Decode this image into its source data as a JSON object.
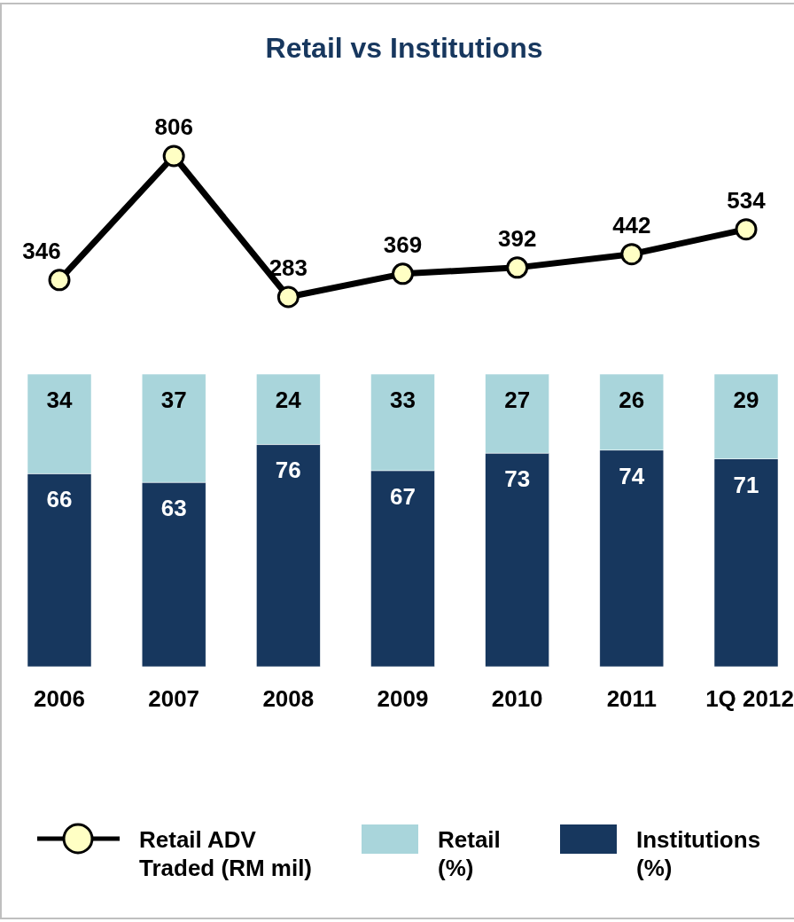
{
  "chart_data": [
    {
      "type": "line",
      "title": "Retail vs Institutions",
      "categories": [
        null,
        null,
        null,
        null,
        null,
        null,
        null
      ],
      "data_labels": true,
      "legend": "bottom",
      "marker": "circle",
      "series": [
        {
          "name": "Retail ADV Traded (RM mil)",
          "color": "#000000",
          "values": [
            346,
            806,
            283,
            369,
            392,
            442,
            534
          ]
        }
      ]
    },
    {
      "type": "bar",
      "categories": [
        "2006",
        "2007",
        "2008",
        "2009",
        "2010",
        "2011",
        "1Q 2012"
      ],
      "stacked": true,
      "ylim": [
        0,
        100
      ],
      "tick_labels": "x",
      "data_labels": true,
      "legend": "bottom",
      "series": [
        {
          "name": "Institutions (%)",
          "color": "#17375e",
          "values": [
            66,
            63,
            76,
            67,
            73,
            74,
            71
          ]
        },
        {
          "name": "Retail (%)",
          "color": "#a9d5db",
          "values": [
            34,
            37,
            24,
            33,
            27,
            26,
            29
          ]
        }
      ]
    }
  ]
}
